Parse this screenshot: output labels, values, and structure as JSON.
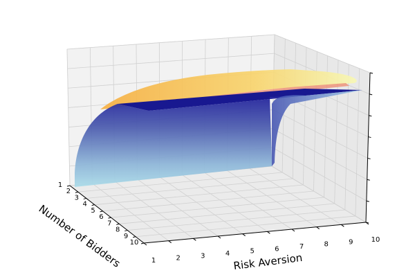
{
  "chart_data": {
    "type": "surface",
    "xlabel": "Risk Aversion",
    "ylabel": "Number of Bidders",
    "zlabel": "",
    "x_ticks": [
      "1",
      "2",
      "3",
      "4",
      "5",
      "6",
      "7",
      "8",
      "9",
      "10"
    ],
    "y_ticks": [
      "1",
      "2",
      "3",
      "4",
      "5",
      "6",
      "7",
      "8",
      "9",
      "10"
    ],
    "z_ticks": [
      "",
      "",
      "",
      "",
      "",
      "",
      "",
      ""
    ],
    "xlim": [
      1,
      10
    ],
    "ylim": [
      1,
      10
    ],
    "grid": true,
    "surfaces": [
      {
        "colormap": "blue-to-light-blue",
        "color_top": "#17178f",
        "color_bottom": "#a8d8ea",
        "description_shape": "rises steeply with bidders, plateaus near the top across risk aversion"
      },
      {
        "colormap": "orange-to-yellow",
        "color_low": "#f6b042",
        "color_mid": "#f08a6e",
        "color_high": "#f8f5a4",
        "description_shape": "slightly above blue plateau, increasing with risk aversion"
      }
    ]
  }
}
